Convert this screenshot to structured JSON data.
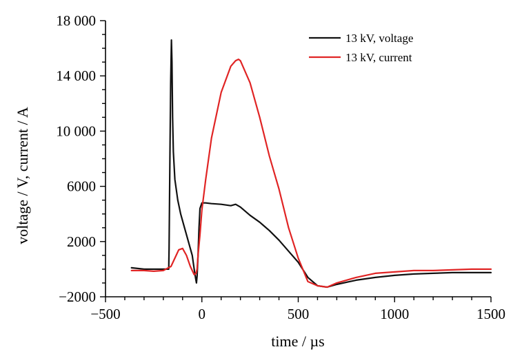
{
  "chart_data": {
    "type": "line",
    "title": "",
    "xlabel": "time / µs",
    "ylabel": "voltage / V, current / A",
    "xlim": [
      -500,
      1500
    ],
    "ylim": [
      -2000,
      18000
    ],
    "xticks": [
      -500,
      0,
      500,
      1000,
      1500
    ],
    "xtick_labels": [
      "−500",
      "0",
      "500",
      "1000",
      "1500"
    ],
    "yticks": [
      -2000,
      2000,
      6000,
      10000,
      14000,
      18000
    ],
    "ytick_labels": [
      "−2000",
      "2000",
      "6000",
      "10 000",
      "14 000",
      "18 000"
    ],
    "grid": false,
    "legend_position": "top-right",
    "series": [
      {
        "name": "13 kV, voltage",
        "color": "#111111",
        "x": [
          -365,
          -300,
          -250,
          -200,
          -172,
          -170,
          -166,
          -162,
          -158,
          -155,
          -152,
          -148,
          -140,
          -125,
          -110,
          -90,
          -70,
          -50,
          -40,
          -32,
          -28,
          -25,
          -20,
          -15,
          -10,
          0,
          20,
          50,
          100,
          150,
          175,
          200,
          250,
          300,
          350,
          400,
          450,
          500,
          550,
          600,
          650,
          700,
          800,
          900,
          1000,
          1100,
          1200,
          1300,
          1400,
          1500
        ],
        "y": [
          100,
          0,
          0,
          0,
          0,
          1500,
          8000,
          13500,
          16600,
          15000,
          11000,
          8500,
          6500,
          5000,
          4000,
          3000,
          2000,
          1000,
          0,
          -700,
          -1000,
          -500,
          1000,
          3000,
          4400,
          4800,
          4800,
          4750,
          4700,
          4600,
          4700,
          4500,
          3900,
          3400,
          2800,
          2100,
          1300,
          500,
          -600,
          -1200,
          -1300,
          -1100,
          -800,
          -600,
          -450,
          -350,
          -300,
          -250,
          -250,
          -250
        ]
      },
      {
        "name": "13 kV, current",
        "color": "#e02424",
        "x": [
          -365,
          -300,
          -250,
          -200,
          -160,
          -140,
          -120,
          -100,
          -80,
          -60,
          -40,
          -30,
          -25,
          -20,
          -10,
          0,
          20,
          50,
          100,
          150,
          175,
          190,
          200,
          250,
          300,
          350,
          400,
          450,
          500,
          550,
          600,
          650,
          700,
          800,
          900,
          1000,
          1100,
          1200,
          1300,
          1400,
          1500
        ],
        "y": [
          -100,
          -100,
          -150,
          -100,
          200,
          800,
          1400,
          1500,
          1000,
          200,
          -400,
          -300,
          0,
          1000,
          2500,
          4300,
          6500,
          9500,
          12800,
          14700,
          15100,
          15200,
          15100,
          13500,
          11000,
          8200,
          5800,
          3000,
          800,
          -900,
          -1200,
          -1300,
          -1000,
          -600,
          -300,
          -200,
          -100,
          -100,
          -50,
          0,
          0
        ]
      }
    ]
  }
}
